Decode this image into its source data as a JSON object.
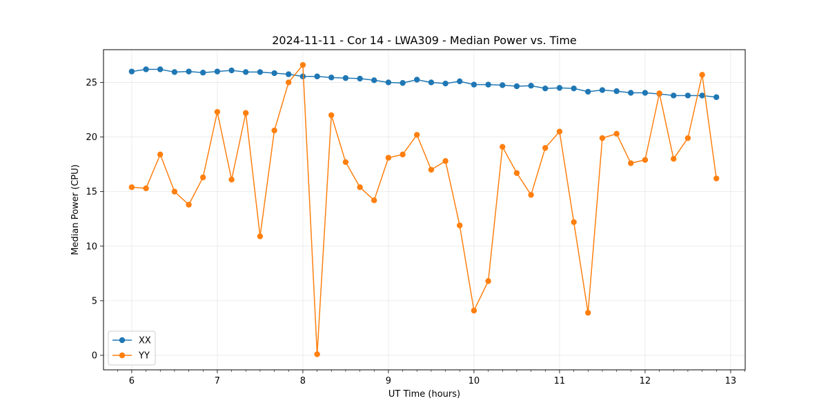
{
  "chart_data": {
    "type": "line",
    "title": "2024-11-11 - Cor 14 - LWA309 - Median Power vs. Time",
    "xlabel": "UT Time (hours)",
    "ylabel": "Median Power (CPU)",
    "xlim": [
      5.67,
      13.17
    ],
    "ylim": [
      -1.33,
      28.0
    ],
    "xticks": [
      6,
      7,
      8,
      9,
      10,
      11,
      12,
      13
    ],
    "yticks": [
      0,
      5,
      10,
      15,
      20,
      25
    ],
    "grid": true,
    "legend_position": "lower-left",
    "x": [
      6.0,
      6.167,
      6.333,
      6.5,
      6.667,
      6.833,
      7.0,
      7.167,
      7.333,
      7.5,
      7.667,
      7.833,
      8.0,
      8.167,
      8.333,
      8.5,
      8.667,
      8.833,
      9.0,
      9.167,
      9.333,
      9.5,
      9.667,
      9.833,
      10.0,
      10.167,
      10.333,
      10.5,
      10.667,
      10.833,
      11.0,
      11.167,
      11.333,
      11.5,
      11.667,
      11.833,
      12.0,
      12.167,
      12.333,
      12.5,
      12.667,
      12.833
    ],
    "series": [
      {
        "name": "XX",
        "color": "#1f77b4",
        "values": [
          26.0,
          26.2,
          26.2,
          25.95,
          26.0,
          25.9,
          26.0,
          26.1,
          25.95,
          25.95,
          25.85,
          25.75,
          25.55,
          25.55,
          25.45,
          25.4,
          25.35,
          25.2,
          25.0,
          24.95,
          25.25,
          25.0,
          24.9,
          25.1,
          24.8,
          24.8,
          24.75,
          24.65,
          24.7,
          24.45,
          24.5,
          24.45,
          24.15,
          24.3,
          24.2,
          24.05,
          24.05,
          23.95,
          23.8,
          23.8,
          23.8,
          23.65
        ]
      },
      {
        "name": "YY",
        "color": "#ff7f0e",
        "values": [
          15.4,
          15.3,
          18.4,
          15.0,
          13.8,
          16.3,
          22.3,
          16.1,
          22.2,
          10.9,
          20.6,
          25.0,
          26.6,
          0.1,
          22.0,
          17.7,
          15.4,
          14.2,
          18.1,
          18.4,
          20.2,
          17.0,
          17.8,
          11.9,
          4.1,
          6.8,
          19.1,
          16.7,
          14.7,
          19.0,
          20.5,
          12.2,
          3.9,
          19.9,
          20.3,
          17.6,
          17.9,
          24.0,
          18.0,
          19.9,
          25.7,
          16.2
        ]
      }
    ]
  }
}
